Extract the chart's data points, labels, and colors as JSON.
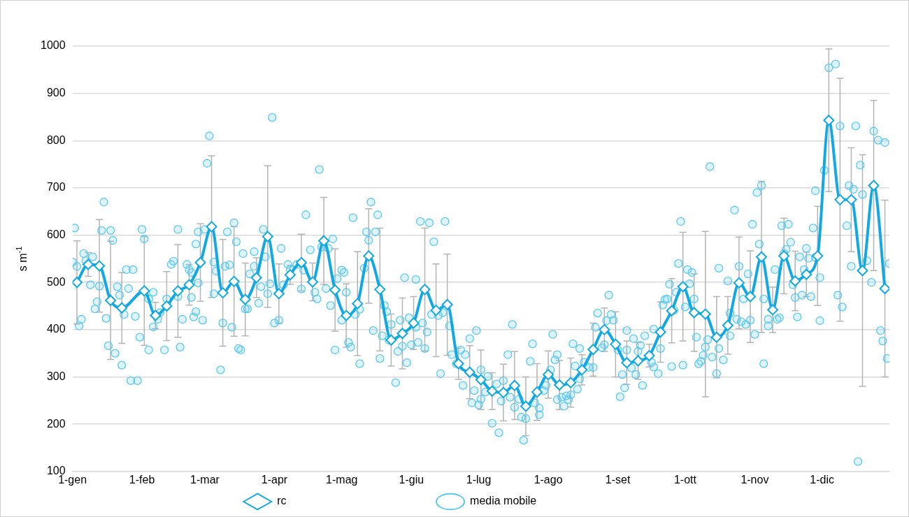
{
  "chart_data": {
    "type": "line",
    "ylabel": "s m$^{-1}$",
    "xlim": [
      "--01-01",
      "--12-31"
    ],
    "xticks": [
      {
        "value": "--01-01",
        "label": "1-gen"
      },
      {
        "value": "--02-01",
        "label": "1-feb"
      },
      {
        "value": "--03-01",
        "label": "1-mar"
      },
      {
        "value": "--04-01",
        "label": "1-apr"
      },
      {
        "value": "--05-01",
        "label": "1-mag"
      },
      {
        "value": "--06-01",
        "label": "1-giu"
      },
      {
        "value": "--07-01",
        "label": "1-lug"
      },
      {
        "value": "--08-01",
        "label": "1-ago"
      },
      {
        "value": "--09-01",
        "label": "1-set"
      },
      {
        "value": "--10-01",
        "label": "1-ott"
      },
      {
        "value": "--11-01",
        "label": "1-nov"
      },
      {
        "value": "--12-01",
        "label": "1-dic"
      }
    ],
    "ylim": [
      100,
      1000
    ],
    "yticks": [
      100,
      200,
      300,
      400,
      500,
      600,
      700,
      800,
      900,
      1000
    ],
    "grid": "y",
    "legend": "bottom",
    "series": [
      {
        "name": "rc",
        "marker": "diamond",
        "line_style": "solid",
        "color": "#12a9e3",
        "x": [
          "--01-03",
          "--01-08",
          "--01-13",
          "--01-18",
          "--01-23",
          "--02-02",
          "--02-07",
          "--02-12",
          "--02-17",
          "--02-22",
          "--02-27",
          "--03-04",
          "--03-09",
          "--03-14",
          "--03-19",
          "--03-24",
          "--03-29",
          "--04-03",
          "--04-08",
          "--04-13",
          "--04-18",
          "--04-23",
          "--04-28",
          "--05-03",
          "--05-08",
          "--05-13",
          "--05-18",
          "--05-23",
          "--05-28",
          "--06-02",
          "--06-07",
          "--06-12",
          "--06-17",
          "--06-22",
          "--06-27",
          "--07-02",
          "--07-07",
          "--07-12",
          "--07-17",
          "--07-22",
          "--07-27",
          "--08-01",
          "--08-06",
          "--08-11",
          "--08-16",
          "--08-21",
          "--08-26",
          "--08-31",
          "--09-05",
          "--09-10",
          "--09-15",
          "--09-20",
          "--09-25",
          "--09-30",
          "--10-05",
          "--10-10",
          "--10-15",
          "--10-20",
          "--10-25",
          "--10-30",
          "--11-04",
          "--11-09",
          "--11-14",
          "--11-19",
          "--11-24",
          "--11-29",
          "--12-04",
          "--12-09",
          "--12-14",
          "--12-19",
          "--12-24",
          "--12-29"
        ],
        "values": [
          500,
          538,
          535,
          462,
          446,
          482,
          430,
          450,
          482,
          495,
          542,
          618,
          478,
          502,
          464,
          510,
          597,
          476,
          516,
          542,
          501,
          588,
          484,
          430,
          455,
          556,
          485,
          378,
          392,
          414,
          485,
          441,
          453,
          328,
          310,
          294,
          270,
          267,
          282,
          238,
          268,
          305,
          283,
          288,
          315,
          358,
          400,
          369,
          330,
          334,
          345,
          395,
          440,
          491,
          436,
          433,
          384,
          409,
          499,
          470,
          554,
          442,
          556,
          503,
          517,
          556,
          843,
          675,
          675,
          525,
          705,
          487
        ],
        "errors": [
          88,
          25,
          98,
          125,
          75,
          115,
          28,
          73,
          98,
          43,
          82,
          150,
          113,
          116,
          77,
          42,
          150,
          63,
          20,
          60,
          40,
          92,
          87,
          67,
          110,
          100,
          130,
          55,
          75,
          56,
          130,
          98,
          107,
          33,
          56,
          63,
          39,
          60,
          72,
          62,
          60,
          50,
          52,
          52,
          32,
          56,
          46,
          69,
          46,
          39,
          24,
          64,
          68,
          115,
          82,
          175,
          86,
          61,
          97,
          97,
          160,
          48,
          80,
          63,
          47,
          105,
          151,
          257,
          110,
          245,
          180,
          187
        ]
      },
      {
        "name": "media mobile",
        "type": "scatter",
        "marker": "circle",
        "color": "#5bc8ef",
        "x": [
          "--01-01",
          "--01-02",
          "--01-03",
          "--01-04",
          "--01-05",
          "--01-06",
          "--01-07",
          "--01-09",
          "--01-10",
          "--01-11",
          "--01-12",
          "--01-13",
          "--01-14",
          "--01-15",
          "--01-16",
          "--01-17",
          "--01-18",
          "--01-19",
          "--01-20",
          "--01-21",
          "--01-22",
          "--01-23",
          "--01-24",
          "--01-25",
          "--01-26",
          "--01-27",
          "--01-28",
          "--01-29",
          "--01-30",
          "--01-31",
          "--02-01",
          "--02-02",
          "--02-04",
          "--02-04",
          "--02-06",
          "--02-06",
          "--02-08",
          "--02-09",
          "--02-11",
          "--02-12",
          "--02-14",
          "--02-15",
          "--02-17",
          "--02-17",
          "--02-18",
          "--02-19",
          "--02-21",
          "--02-22",
          "--02-23",
          "--02-23",
          "--02-24",
          "--02-25",
          "--02-26",
          "--02-25",
          "--02-28",
          "--03-01",
          "--02-26",
          "--03-02",
          "--03-03",
          "--03-05",
          "--03-05",
          "--03-06",
          "--03-08",
          "--03-09",
          "--03-10",
          "--03-11",
          "--03-12",
          "--03-13",
          "--03-14",
          "--03-15",
          "--03-16",
          "--03-17",
          "--03-18",
          "--03-19",
          "--03-20",
          "--03-21",
          "--03-23",
          "--03-23",
          "--03-25",
          "--03-26",
          "--03-27",
          "--03-28",
          "--03-30",
          "--03-29",
          "--03-31",
          "--04-01",
          "--04-03",
          "--04-04",
          "--04-05",
          "--04-07",
          "--04-08",
          "--04-11",
          "--04-13",
          "--04-14",
          "--04-15",
          "--04-17",
          "--04-19",
          "--04-20",
          "--04-21",
          "--04-22",
          "--04-24",
          "--04-25",
          "--04-26",
          "--04-27",
          "--04-28",
          "--05-01",
          "--04-29",
          "--05-02",
          "--05-03",
          "--05-01",
          "--05-04",
          "--05-05",
          "--05-06",
          "--05-07",
          "--05-09",
          "--05-09",
          "--05-11",
          "--05-12",
          "--05-13",
          "--05-14",
          "--05-16",
          "--05-17",
          "--05-15",
          "--05-18",
          "--05-19",
          "--05-20",
          "--05-21",
          "--05-22",
          "--05-23",
          "--05-25",
          "--05-26",
          "--05-27",
          "--05-28",
          "--05-29",
          "--05-30",
          "--05-31",
          "--06-01",
          "--06-03",
          "--06-03",
          "--06-04",
          "--06-05",
          "--06-06",
          "--06-07",
          "--06-08",
          "--06-09",
          "--06-10",
          "--06-11",
          "--06-13",
          "--06-14",
          "--06-15",
          "--06-16",
          "--06-18",
          "--06-19",
          "--06-21",
          "--06-23",
          "--06-24",
          "--06-25",
          "--06-27",
          "--06-28",
          "--06-29",
          "--06-30",
          "--07-01",
          "--07-02",
          "--07-02",
          "--07-04",
          "--07-05",
          "--07-07",
          "--07-10",
          "--07-09",
          "--07-11",
          "--07-12",
          "--07-14",
          "--07-15",
          "--07-16",
          "--07-17",
          "--07-19",
          "--07-20",
          "--07-21",
          "--07-22",
          "--07-24",
          "--07-25",
          "--07-26",
          "--07-28",
          "--07-28",
          "--07-30",
          "--07-31",
          "--08-02",
          "--08-03",
          "--08-04",
          "--08-05",
          "--08-05",
          "--08-07",
          "--08-08",
          "--08-09",
          "--08-10",
          "--08-11",
          "--08-12",
          "--08-14",
          "--08-15",
          "--08-13",
          "--08-15",
          "--08-17",
          "--08-19",
          "--08-21",
          "--08-22",
          "--08-23",
          "--08-25",
          "--08-26",
          "--08-27",
          "--08-28",
          "--08-29",
          "--08-30",
          "--09-01",
          "--09-02",
          "--09-03",
          "--09-04",
          "--09-05",
          "--09-05",
          "--09-07",
          "--09-08",
          "--09-09",
          "--09-10",
          "--09-11",
          "--09-12",
          "--09-13",
          "--09-16",
          "--09-17",
          "--09-17",
          "--09-19",
          "--09-20",
          "--09-21",
          "--09-22",
          "--09-23",
          "--09-24",
          "--09-25",
          "--09-26",
          "--09-27",
          "--09-28",
          "--09-29",
          "--09-30",
          "--10-01",
          "--10-02",
          "--10-03",
          "--10-04",
          "--10-05",
          "--10-06",
          "--10-07",
          "--10-08",
          "--10-09",
          "--10-10",
          "--10-11",
          "--10-12",
          "--10-13",
          "--10-15",
          "--10-16",
          "--10-16",
          "--10-18",
          "--10-20",
          "--10-21",
          "--10-21",
          "--10-23",
          "--10-24",
          "--10-25",
          "--10-26",
          "--10-27",
          "--10-28",
          "--10-29",
          "--10-30",
          "--10-31",
          "--11-01",
          "--11-02",
          "--11-03",
          "--11-04",
          "--11-05",
          "--11-05",
          "--11-07",
          "--11-07",
          "--11-10",
          "--11-11",
          "--11-12",
          "--11-13",
          "--11-14",
          "--11-15",
          "--11-16",
          "--11-17",
          "--11-18",
          "--11-19",
          "--11-20",
          "--11-21",
          "--11-22",
          "--11-23",
          "--11-24",
          "--11-25",
          "--11-26",
          "--11-27",
          "--11-28",
          "--11-28",
          "--11-30",
          "--11-30",
          "--12-02",
          "--12-04",
          "--12-07",
          "--12-08",
          "--12-09",
          "--12-10",
          "--12-12",
          "--12-13",
          "--12-14",
          "--12-15",
          "--12-16",
          "--12-17",
          "--12-18",
          "--12-19",
          "--12-21",
          "--12-23",
          "--12-24",
          "--12-26",
          "--12-27",
          "--12-28",
          "--12-29",
          "--12-30",
          "--12-31"
        ],
        "values": [
          543,
          615,
          534,
          408,
          422,
          561,
          546,
          495,
          554,
          444,
          459,
          492,
          610,
          670,
          424,
          366,
          610,
          589,
          350,
          491,
          473,
          325,
          432,
          527,
          487,
          292,
          527,
          428,
          292,
          384,
          612,
          592,
          465,
          357,
          479,
          406,
          422,
          436,
          357,
          465,
          538,
          545,
          612,
          470,
          363,
          422,
          538,
          527,
          521,
          468,
          427,
          581,
          607,
          438,
          420,
          612,
          499,
          752,
          810,
          476,
          543,
          524,
          315,
          414,
          534,
          607,
          537,
          405,
          626,
          586,
          360,
          357,
          561,
          444,
          444,
          518,
          534,
          565,
          456,
          491,
          612,
          554,
          497,
          476,
          849,
          414,
          420,
          572,
          495,
          538,
          527,
          538,
          486,
          526,
          643,
          569,
          479,
          465,
          739,
          575,
          487,
          572,
          451,
          592,
          357,
          526,
          508,
          521,
          479,
          420,
          373,
          363,
          637,
          432,
          443,
          328,
          530,
          607,
          589,
          670,
          607,
          643,
          398,
          339,
          387,
          451,
          438,
          378,
          411,
          288,
          354,
          420,
          365,
          510,
          330,
          425,
          368,
          405,
          506,
          373,
          629,
          414,
          360,
          395,
          626,
          432,
          586,
          430,
          307,
          436,
          629,
          408,
          347,
          328,
          357,
          282,
          347,
          381,
          245,
          271,
          398,
          241,
          315,
          253,
          268,
          301,
          202,
          182,
          285,
          249,
          292,
          347,
          257,
          411,
          236,
          253,
          215,
          166,
          212,
          333,
          370,
          245,
          220,
          234,
          271,
          282,
          315,
          390,
          336,
          347,
          252,
          257,
          238,
          260,
          252,
          262,
          370,
          274,
          360,
          323,
          296,
          331,
          320,
          320,
          405,
          435,
          362,
          368,
          419,
          473,
          432,
          420,
          357,
          258,
          305,
          277,
          398,
          357,
          319,
          381,
          305,
          354,
          367,
          282,
          387,
          331,
          321,
          401,
          307,
          360,
          452,
          464,
          465,
          496,
          322,
          441,
          479,
          540,
          629,
          325,
          448,
          527,
          497,
          521,
          465,
          384,
          328,
          333,
          346,
          363,
          379,
          745,
          342,
          307,
          530,
          360,
          336,
          503,
          387,
          435,
          653,
          422,
          534,
          417,
          465,
          411,
          518,
          420,
          623,
          390,
          690,
          581,
          705,
          465,
          328,
          422,
          408,
          527,
          422,
          425,
          620,
          561,
          570,
          623,
          585,
          495,
          468,
          427,
          554,
          473,
          527,
          572,
          551,
          470,
          615,
          553,
          694,
          419,
          510,
          737,
          954,
          962,
          473,
          831,
          448,
          620,
          705,
          534,
          697,
          831,
          121,
          748,
          686,
          546,
          500,
          820,
          801,
          398,
          376,
          796,
          339,
          540
        ]
      }
    ]
  }
}
